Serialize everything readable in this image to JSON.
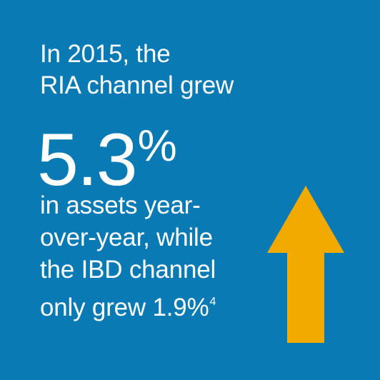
{
  "infographic": {
    "intro_line_1": "In 2015, the",
    "intro_line_2": "RIA channel grew",
    "big_number": "5.3",
    "big_unit": "%",
    "body_line_1": "in assets year-",
    "body_line_2": "over-year, while",
    "body_line_3": "the IBD channel",
    "body_line_4": "only grew 1.9%",
    "footnote": "4"
  },
  "colors": {
    "background": "#0a7ab5",
    "text": "#ffffff",
    "arrow": "#f2a900"
  },
  "icons": {
    "arrow": "up-arrow-icon"
  }
}
